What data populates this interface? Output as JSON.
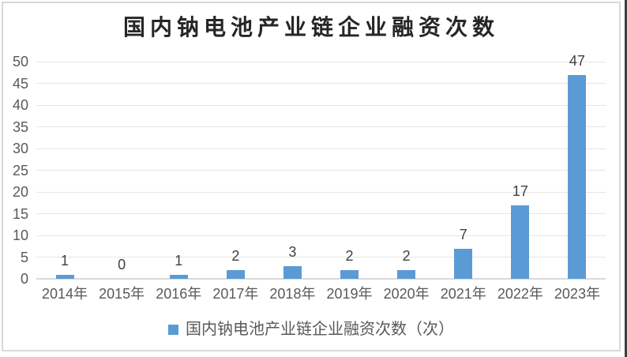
{
  "title": "国内钠电池产业链企业融资次数",
  "legend": {
    "label": "国内钠电池产业链企业融资次数（次）",
    "swatch_color": "#5B9BD5"
  },
  "chart_data": {
    "type": "bar",
    "title": "国内钠电池产业链企业融资次数",
    "categories": [
      "2014年",
      "2015年",
      "2016年",
      "2017年",
      "2018年",
      "2019年",
      "2020年",
      "2021年",
      "2022年",
      "2023年"
    ],
    "values": [
      1,
      0,
      1,
      2,
      3,
      2,
      2,
      7,
      17,
      47
    ],
    "series_name": "国内钠电池产业链企业融资次数（次）",
    "xlabel": "",
    "ylabel": "",
    "ylim": [
      0,
      50
    ],
    "ytick_step": 5,
    "ytick_labels": [
      "0",
      "5",
      "10",
      "15",
      "20",
      "25",
      "30",
      "35",
      "40",
      "45",
      "50"
    ],
    "data_labels_shown": true,
    "grid": "horizontal",
    "legend_position": "bottom",
    "bar_color": "#5B9BD5"
  },
  "colors": {
    "bar": "#5B9BD5",
    "gridline": "#E5E5E5",
    "axis_line": "#D9D9D9",
    "tick_label": "#595959",
    "data_label": "#404040",
    "title_text": "#262626",
    "frame_border": "#D9D9D9",
    "window_edge": "#3F3F3F"
  }
}
